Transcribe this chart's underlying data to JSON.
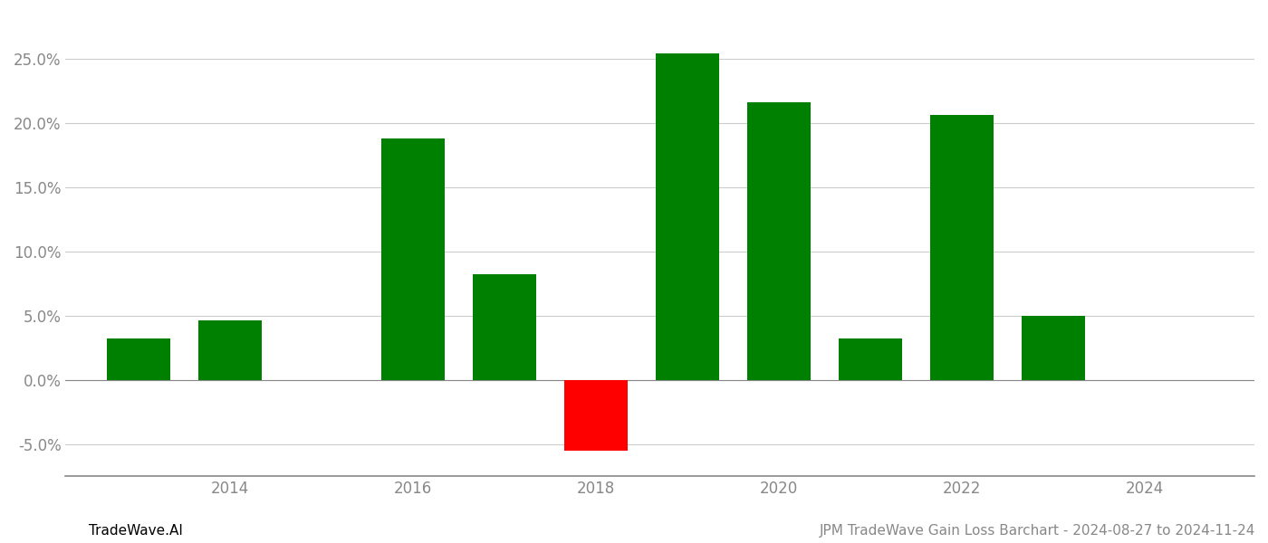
{
  "years": [
    2013,
    2014,
    2016,
    2017,
    2018,
    2019,
    2020,
    2021,
    2022,
    2023
  ],
  "values": [
    0.032,
    0.046,
    0.188,
    0.082,
    -0.055,
    0.254,
    0.216,
    0.032,
    0.206,
    0.05
  ],
  "bar_colors": [
    "#008000",
    "#008000",
    "#008000",
    "#008000",
    "#ff0000",
    "#008000",
    "#008000",
    "#008000",
    "#008000",
    "#008000"
  ],
  "title": "JPM TradeWave Gain Loss Barchart - 2024-08-27 to 2024-11-24",
  "watermark": "TradeWave.AI",
  "ytick_labels": [
    "-5.0%",
    "0.0%",
    "5.0%",
    "10.0%",
    "15.0%",
    "20.0%",
    "25.0%"
  ],
  "ytick_values": [
    -0.05,
    0.0,
    0.05,
    0.1,
    0.15,
    0.2,
    0.25
  ],
  "ylim": [
    -0.075,
    0.285
  ],
  "xlim": [
    2012.2,
    2025.2
  ],
  "xtick_values": [
    2014,
    2016,
    2018,
    2020,
    2022,
    2024
  ],
  "bar_width": 0.7,
  "background_color": "#ffffff",
  "grid_color": "#cccccc",
  "axis_color": "#888888",
  "title_fontsize": 11,
  "watermark_fontsize": 11,
  "tick_fontsize": 12
}
